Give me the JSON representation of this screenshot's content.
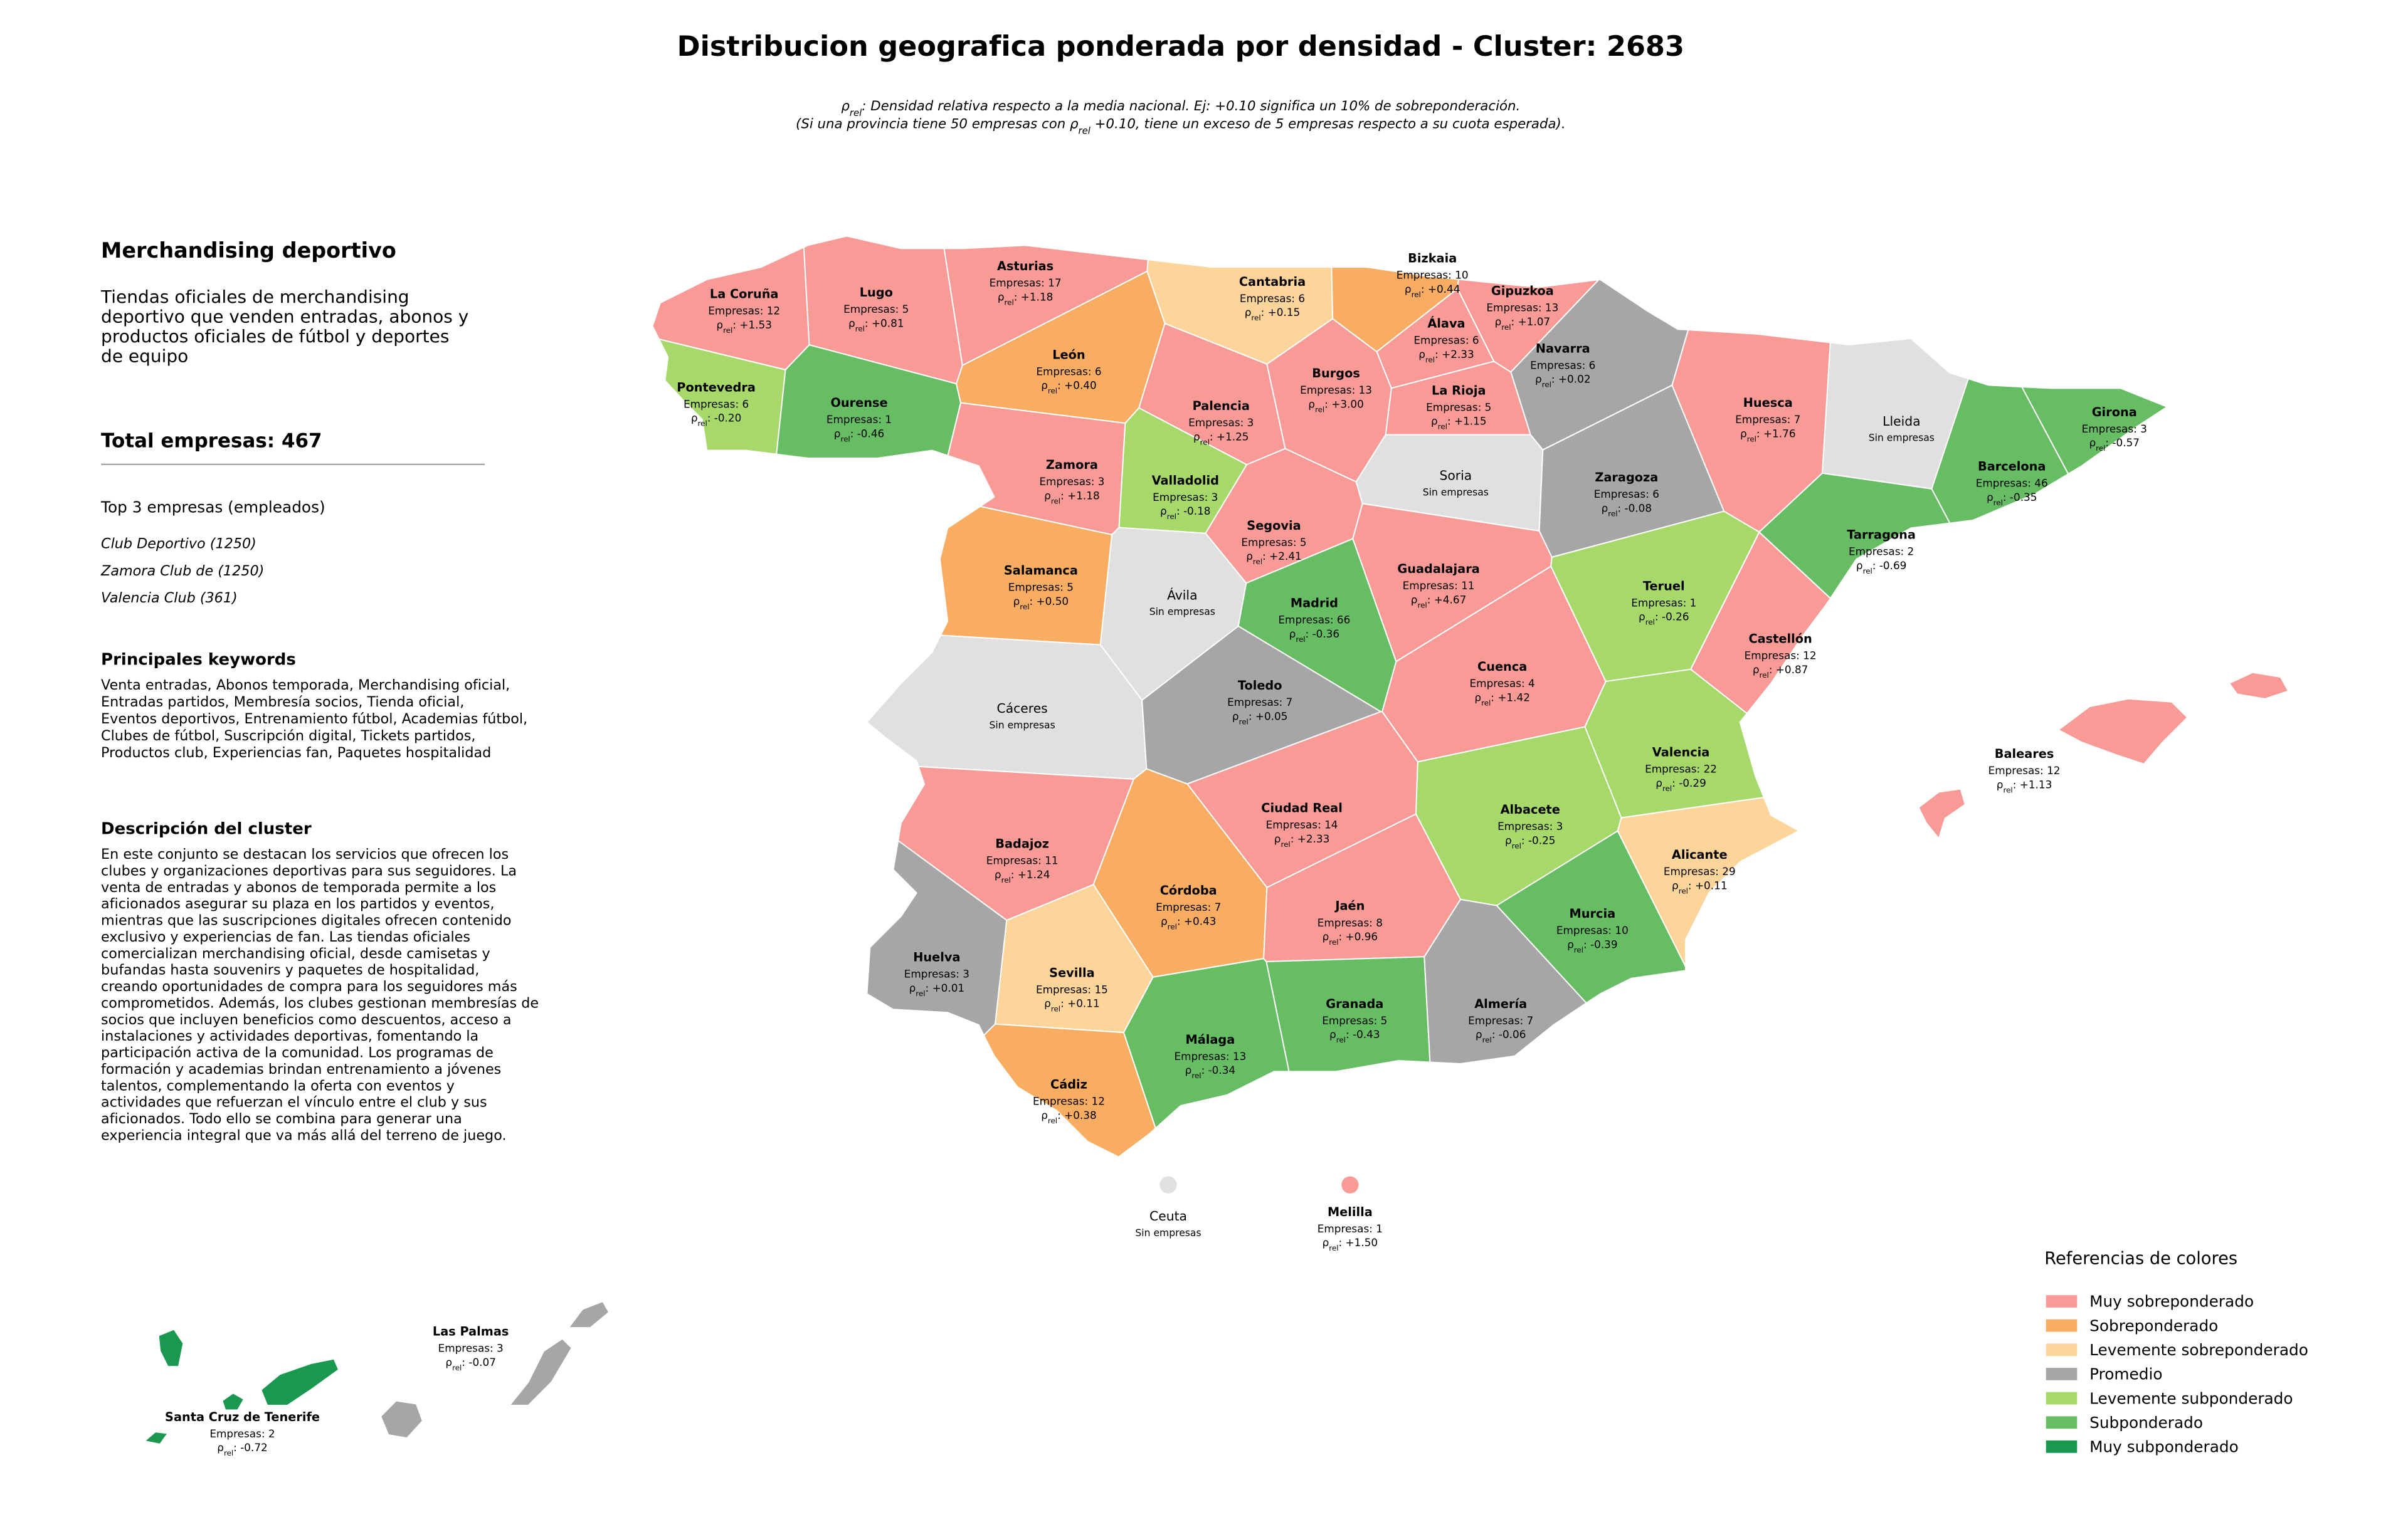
{
  "title": "Distribucion geografica ponderada por densidad - Cluster: 2683",
  "subtitle": [
    {
      "before": "ρ",
      "sub": "rel",
      "after": ": Densidad relativa respecto a la media nacional. Ej: +0.10 significa un 10% de sobreponderación."
    },
    {
      "before": "(Si una provincia tiene 50 empresas con ρ",
      "sub": "rel",
      "after": " +0.10, tiene un exceso de 5 empresas respecto a su cuota esperada)."
    }
  ],
  "panel": {
    "heading": "Merchandising deportivo",
    "intro": [
      "Tiendas oficiales de merchandising",
      "deportivo que venden entradas, abonos y",
      "productos oficiales de fútbol y deportes",
      "de equipo"
    ],
    "total_label": "Total empresas: ",
    "total": 467,
    "top_title": "Top 3 empresas (empleados)",
    "top": [
      "Club Deportivo (1250)",
      "Zamora Club de (1250)",
      "Valencia Club (361)"
    ],
    "keywords_title": "Principales keywords",
    "keywords": [
      "Venta entradas, Abonos temporada, Merchandising oficial,",
      "Entradas partidos, Membresía socios, Tienda oficial,",
      "Eventos deportivos, Entrenamiento fútbol, Academias fútbol,",
      "Clubes de fútbol, Suscripción digital, Tickets partidos,",
      "Productos club, Experiencias fan, Paquetes hospitalidad"
    ],
    "description_title": "Descripción del cluster",
    "description": [
      "En este conjunto se destacan los servicios que ofrecen los",
      "clubes y organizaciones deportivas para sus seguidores. La",
      "venta de entradas y abonos de temporada permite a los",
      "aficionados asegurar su plaza en los partidos y eventos,",
      "mientras que las suscripciones digitales ofrecen contenido",
      "exclusivo y experiencias de fan. Las tiendas oficiales",
      "comercializan merchandising oficial, desde camisetas y",
      "bufandas hasta souvenirs y paquetes de hospitalidad,",
      "creando oportunidades de compra para los seguidores más",
      "comprometidos. Además, los clubes gestionan membresías de",
      "socios que incluyen beneficios como descuentos, acceso a",
      "instalaciones y actividades deportivas, fomentando la",
      "participación activa de la comunidad. Los programas de",
      "formación y academias brindan entrenamiento a jóvenes",
      "talentos, complementando la oferta con eventos y",
      "actividades que refuerzan el vínculo entre el club y sus",
      "aficionados. Todo ello se combina para generar una",
      "experiencia integral que va más allá del terreno de juego."
    ]
  },
  "labels": {
    "count_prefix": "Empresas: ",
    "rho_symbol": "ρ",
    "rho_sub": "rel",
    "rho_sep": ": ",
    "no_data": "Sin empresas",
    "no_data_color": "#e0e0e0"
  },
  "legend": {
    "title": "Referencias de colores",
    "items": [
      {
        "name": "Muy sobreponderado",
        "color": "#f89a96"
      },
      {
        "name": "Sobreponderado",
        "color": "#f8ad62"
      },
      {
        "name": "Levemente sobreponderado",
        "color": "#fdd49a"
      },
      {
        "name": "Promedio",
        "color": "#a6a6a6"
      },
      {
        "name": "Levemente subponderado",
        "color": "#a6d96a"
      },
      {
        "name": "Subponderado",
        "color": "#66bd63"
      },
      {
        "name": "Muy subponderado",
        "color": "#1a9850"
      }
    ]
  },
  "provinces": [
    {
      "name": "La Coruña",
      "count": 12,
      "rho": "+1.53",
      "category": "Muy sobreponderado"
    },
    {
      "name": "Lugo",
      "count": 5,
      "rho": "+0.81",
      "category": "Muy sobreponderado"
    },
    {
      "name": "Asturias",
      "count": 17,
      "rho": "+1.18",
      "category": "Muy sobreponderado"
    },
    {
      "name": "Cantabria",
      "count": 6,
      "rho": "+0.15",
      "category": "Levemente sobreponderado"
    },
    {
      "name": "Bizkaia",
      "count": 10,
      "rho": "+0.44",
      "category": "Sobreponderado"
    },
    {
      "name": "Gipuzkoa",
      "count": 13,
      "rho": "+1.07",
      "category": "Muy sobreponderado"
    },
    {
      "name": "Álava",
      "count": 6,
      "rho": "+2.33",
      "category": "Muy sobreponderado"
    },
    {
      "name": "Navarra",
      "count": 6,
      "rho": "+0.02",
      "category": "Promedio"
    },
    {
      "name": "La Rioja",
      "count": 5,
      "rho": "+1.15",
      "category": "Muy sobreponderado"
    },
    {
      "name": "Pontevedra",
      "count": 6,
      "rho": "-0.20",
      "category": "Levemente subponderado"
    },
    {
      "name": "Ourense",
      "count": 1,
      "rho": "-0.46",
      "category": "Subponderado"
    },
    {
      "name": "León",
      "count": 6,
      "rho": "+0.40",
      "category": "Sobreponderado"
    },
    {
      "name": "Palencia",
      "count": 3,
      "rho": "+1.25",
      "category": "Muy sobreponderado"
    },
    {
      "name": "Burgos",
      "count": 13,
      "rho": "+3.00",
      "category": "Muy sobreponderado"
    },
    {
      "name": "Huesca",
      "count": 7,
      "rho": "+1.76",
      "category": "Muy sobreponderado"
    },
    {
      "name": "Lleida"
    },
    {
      "name": "Girona",
      "count": 3,
      "rho": "-0.57",
      "category": "Subponderado"
    },
    {
      "name": "Zamora",
      "count": 3,
      "rho": "+1.18",
      "category": "Muy sobreponderado"
    },
    {
      "name": "Valladolid",
      "count": 3,
      "rho": "-0.18",
      "category": "Levemente subponderado"
    },
    {
      "name": "Soria"
    },
    {
      "name": "Zaragoza",
      "count": 6,
      "rho": "-0.08",
      "category": "Promedio"
    },
    {
      "name": "Barcelona",
      "count": 46,
      "rho": "-0.35",
      "category": "Subponderado"
    },
    {
      "name": "Tarragona",
      "count": 2,
      "rho": "-0.69",
      "category": "Subponderado"
    },
    {
      "name": "Segovia",
      "count": 5,
      "rho": "+2.41",
      "category": "Muy sobreponderado"
    },
    {
      "name": "Salamanca",
      "count": 5,
      "rho": "+0.50",
      "category": "Sobreponderado"
    },
    {
      "name": "Ávila"
    },
    {
      "name": "Madrid",
      "count": 66,
      "rho": "-0.36",
      "category": "Subponderado"
    },
    {
      "name": "Guadalajara",
      "count": 11,
      "rho": "+4.67",
      "category": "Muy sobreponderado"
    },
    {
      "name": "Teruel",
      "count": 1,
      "rho": "-0.26",
      "category": "Levemente subponderado"
    },
    {
      "name": "Castellón",
      "count": 12,
      "rho": "+0.87",
      "category": "Muy sobreponderado"
    },
    {
      "name": "Cáceres"
    },
    {
      "name": "Toledo",
      "count": 7,
      "rho": "+0.05",
      "category": "Promedio"
    },
    {
      "name": "Cuenca",
      "count": 4,
      "rho": "+1.42",
      "category": "Muy sobreponderado"
    },
    {
      "name": "Valencia",
      "count": 22,
      "rho": "-0.29",
      "category": "Levemente subponderado"
    },
    {
      "name": "Baleares",
      "count": 12,
      "rho": "+1.13",
      "category": "Muy sobreponderado"
    },
    {
      "name": "Badajoz",
      "count": 11,
      "rho": "+1.24",
      "category": "Muy sobreponderado"
    },
    {
      "name": "Ciudad Real",
      "count": 14,
      "rho": "+2.33",
      "category": "Muy sobreponderado"
    },
    {
      "name": "Albacete",
      "count": 3,
      "rho": "-0.25",
      "category": "Levemente subponderado"
    },
    {
      "name": "Córdoba",
      "count": 7,
      "rho": "+0.43",
      "category": "Sobreponderado"
    },
    {
      "name": "Jaén",
      "count": 8,
      "rho": "+0.96",
      "category": "Muy sobreponderado"
    },
    {
      "name": "Alicante",
      "count": 29,
      "rho": "+0.11",
      "category": "Levemente sobreponderado"
    },
    {
      "name": "Murcia",
      "count": 10,
      "rho": "-0.39",
      "category": "Subponderado"
    },
    {
      "name": "Huelva",
      "count": 3,
      "rho": "+0.01",
      "category": "Promedio"
    },
    {
      "name": "Sevilla",
      "count": 15,
      "rho": "+0.11",
      "category": "Levemente sobreponderado"
    },
    {
      "name": "Granada",
      "count": 5,
      "rho": "-0.43",
      "category": "Subponderado"
    },
    {
      "name": "Almería",
      "count": 7,
      "rho": "-0.06",
      "category": "Promedio"
    },
    {
      "name": "Málaga",
      "count": 13,
      "rho": "-0.34",
      "category": "Subponderado"
    },
    {
      "name": "Cádiz",
      "count": 12,
      "rho": "+0.38",
      "category": "Sobreponderado"
    },
    {
      "name": "Ceuta"
    },
    {
      "name": "Melilla",
      "count": 1,
      "rho": "+1.50",
      "category": "Muy sobreponderado"
    },
    {
      "name": "Las Palmas",
      "count": 3,
      "rho": "-0.07",
      "category": "Promedio"
    },
    {
      "name": "Santa Cruz de Tenerife",
      "count": 2,
      "rho": "-0.72",
      "category": "Muy subponderado"
    }
  ]
}
